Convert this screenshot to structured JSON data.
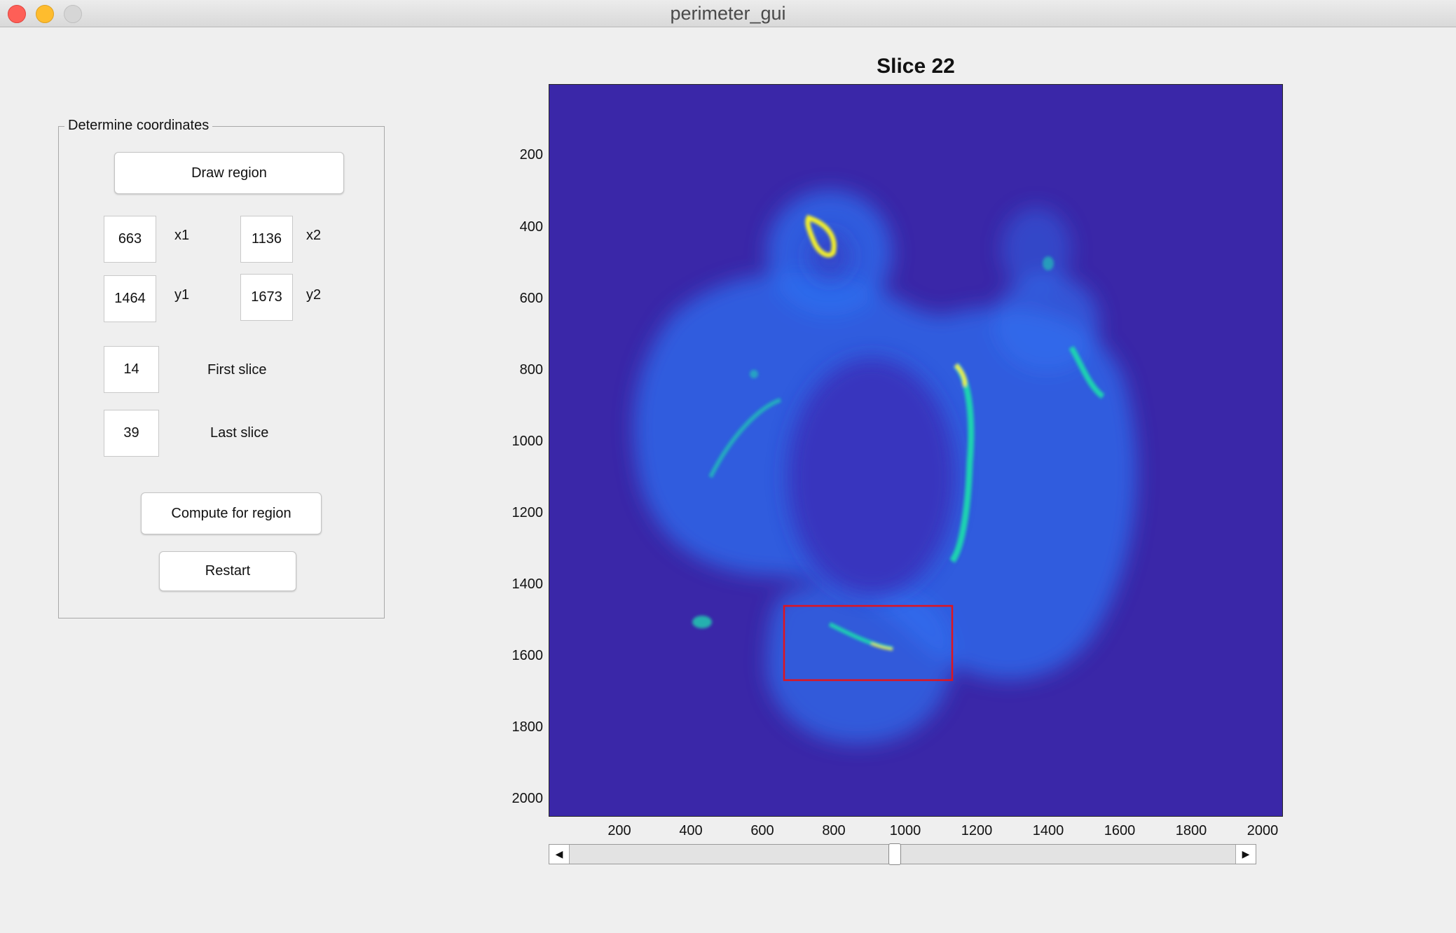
{
  "window": {
    "title": "perimeter_gui"
  },
  "panel": {
    "title": "Determine coordinates",
    "draw_region_label": "Draw region",
    "x1": {
      "value": "663",
      "label": "x1"
    },
    "x2": {
      "value": "1136",
      "label": "x2"
    },
    "y1": {
      "value": "1464",
      "label": "y1"
    },
    "y2": {
      "value": "1673",
      "label": "y2"
    },
    "first_slice": {
      "value": "14",
      "label": "First slice"
    },
    "last_slice": {
      "value": "39",
      "label": "Last slice"
    },
    "compute_label": "Compute for region",
    "restart_label": "Restart"
  },
  "plot": {
    "title": "Slice 22",
    "x_ticks": [
      "200",
      "400",
      "600",
      "800",
      "1000",
      "1200",
      "1400",
      "1600",
      "1800",
      "2000"
    ],
    "y_ticks": [
      "200",
      "400",
      "600",
      "800",
      "1000",
      "1200",
      "1400",
      "1600",
      "1800",
      "2000"
    ],
    "colormap": {
      "background": "#3a27a8",
      "tissue": "#2f6ff0",
      "bright": "#f4f12a",
      "mid": "#1fd3b0"
    },
    "region_color": "#e0141e"
  },
  "slider": {
    "current_slice": 22,
    "min_slice": 1,
    "max_slice": 44
  }
}
